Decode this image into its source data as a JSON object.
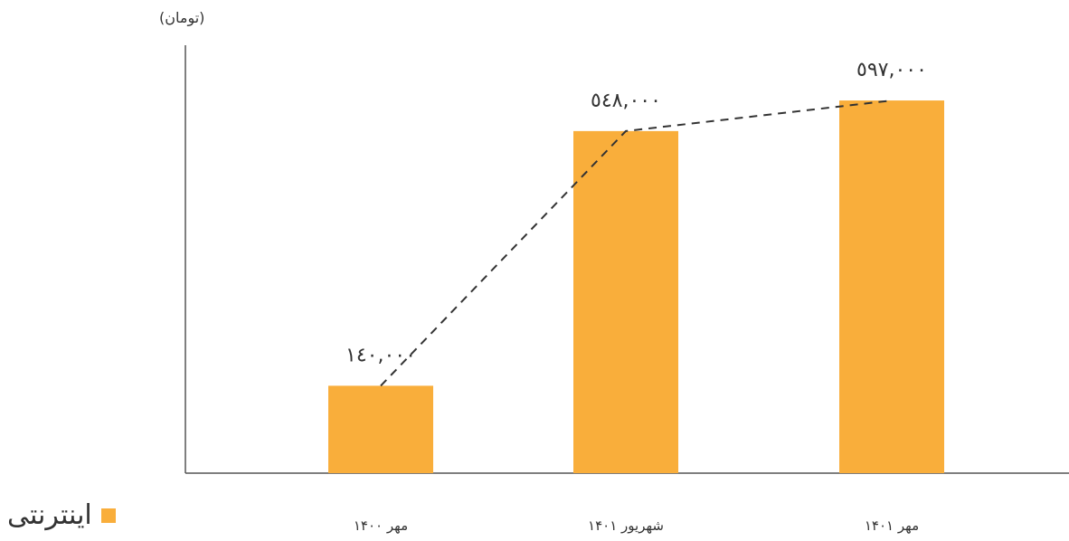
{
  "chart_data": {
    "type": "bar",
    "unit_label": "(تومان)",
    "categories": [
      "مهر ۱۴۰۰",
      "شهریور ۱۴۰۱",
      "مهر ۱۴۰۱"
    ],
    "series": [
      {
        "name": "اینترنتی",
        "color": "#f9ae3b",
        "values": [
          140000,
          548000,
          597000
        ],
        "value_labels": [
          "١٤٠,٠٠٠",
          "٥٤٨,٠٠٠",
          "٥٩٧,٠٠٠"
        ]
      }
    ],
    "trend_line": "dashed",
    "ylim": [
      0,
      700000
    ],
    "grid": false,
    "legend_position": "bottom-left"
  }
}
